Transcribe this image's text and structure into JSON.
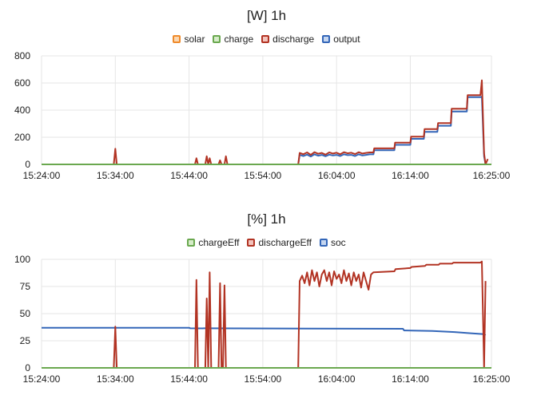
{
  "chart_data": [
    {
      "type": "line",
      "title": "[W] 1h",
      "xlabel": "",
      "ylabel": "",
      "ylim": [
        0,
        800
      ],
      "yticks": [
        "0",
        "200",
        "400",
        "600",
        "800"
      ],
      "xlim": [
        "15:24:00",
        "16:25:00"
      ],
      "xticks": [
        "15:24:00",
        "15:34:00",
        "15:44:00",
        "15:54:00",
        "16:04:00",
        "16:14:00",
        "16:25:00"
      ],
      "legend_position": "top",
      "grid": true,
      "series": [
        {
          "name": "solar",
          "color": "#ef8a2a",
          "points": [
            [
              "15:24:00",
              0
            ],
            [
              "16:25:00",
              0
            ]
          ]
        },
        {
          "name": "charge",
          "color": "#6aa84f",
          "points": [
            [
              "15:24:00",
              0
            ],
            [
              "16:25:00",
              0
            ]
          ]
        },
        {
          "name": "discharge",
          "color": "#b23323",
          "points": [
            [
              "15:24:00",
              0
            ],
            [
              "15:33:48",
              0
            ],
            [
              "15:34:00",
              115
            ],
            [
              "15:34:12",
              0
            ],
            [
              "15:44:48",
              0
            ],
            [
              "15:45:00",
              45
            ],
            [
              "15:45:12",
              0
            ],
            [
              "15:46:12",
              0
            ],
            [
              "15:46:24",
              60
            ],
            [
              "15:46:36",
              0
            ],
            [
              "15:46:48",
              45
            ],
            [
              "15:47:00",
              0
            ],
            [
              "15:48:00",
              0
            ],
            [
              "15:48:12",
              30
            ],
            [
              "15:48:24",
              0
            ],
            [
              "15:48:48",
              0
            ],
            [
              "15:49:00",
              60
            ],
            [
              "15:49:12",
              0
            ],
            [
              "15:58:48",
              0
            ],
            [
              "15:59:00",
              85
            ],
            [
              "15:59:30",
              75
            ],
            [
              "16:00:00",
              88
            ],
            [
              "16:00:30",
              70
            ],
            [
              "16:01:00",
              90
            ],
            [
              "16:01:30",
              78
            ],
            [
              "16:02:00",
              85
            ],
            [
              "16:02:30",
              72
            ],
            [
              "16:03:00",
              88
            ],
            [
              "16:03:30",
              80
            ],
            [
              "16:04:00",
              86
            ],
            [
              "16:04:30",
              75
            ],
            [
              "16:05:00",
              90
            ],
            [
              "16:05:30",
              82
            ],
            [
              "16:06:00",
              86
            ],
            [
              "16:06:30",
              76
            ],
            [
              "16:07:00",
              90
            ],
            [
              "16:07:30",
              80
            ],
            [
              "16:08:00",
              85
            ],
            [
              "16:08:30",
              88
            ],
            [
              "16:09:00",
              88
            ],
            [
              "16:09:06",
              118
            ],
            [
              "16:11:50",
              118
            ],
            [
              "16:11:56",
              160
            ],
            [
              "16:14:00",
              160
            ],
            [
              "16:14:06",
              205
            ],
            [
              "16:15:50",
              205
            ],
            [
              "16:15:56",
              260
            ],
            [
              "16:17:40",
              260
            ],
            [
              "16:17:46",
              305
            ],
            [
              "16:19:30",
              305
            ],
            [
              "16:19:36",
              410
            ],
            [
              "16:21:40",
              410
            ],
            [
              "16:21:46",
              510
            ],
            [
              "16:23:30",
              510
            ],
            [
              "16:23:42",
              620
            ],
            [
              "16:24:00",
              80
            ],
            [
              "16:24:12",
              0
            ],
            [
              "16:24:30",
              40
            ]
          ]
        },
        {
          "name": "output",
          "color": "#3366b8",
          "points": [
            [
              "15:24:00",
              0
            ],
            [
              "15:58:48",
              0
            ],
            [
              "15:59:00",
              70
            ],
            [
              "15:59:30",
              62
            ],
            [
              "16:00:00",
              72
            ],
            [
              "16:00:30",
              58
            ],
            [
              "16:01:00",
              74
            ],
            [
              "16:01:30",
              64
            ],
            [
              "16:02:00",
              70
            ],
            [
              "16:02:30",
              60
            ],
            [
              "16:03:00",
              72
            ],
            [
              "16:03:30",
              66
            ],
            [
              "16:04:00",
              70
            ],
            [
              "16:04:30",
              62
            ],
            [
              "16:05:00",
              74
            ],
            [
              "16:05:30",
              68
            ],
            [
              "16:06:00",
              70
            ],
            [
              "16:06:30",
              62
            ],
            [
              "16:07:00",
              74
            ],
            [
              "16:07:30",
              66
            ],
            [
              "16:08:00",
              70
            ],
            [
              "16:08:30",
              74
            ],
            [
              "16:09:00",
              74
            ],
            [
              "16:09:06",
              104
            ],
            [
              "16:11:50",
              104
            ],
            [
              "16:11:56",
              144
            ],
            [
              "16:14:00",
              144
            ],
            [
              "16:14:06",
              188
            ],
            [
              "16:15:50",
              188
            ],
            [
              "16:15:56",
              240
            ],
            [
              "16:17:40",
              240
            ],
            [
              "16:17:46",
              285
            ],
            [
              "16:19:30",
              285
            ],
            [
              "16:19:36",
              390
            ],
            [
              "16:21:40",
              390
            ],
            [
              "16:21:46",
              495
            ],
            [
              "16:23:30",
              495
            ],
            [
              "16:23:42",
              500
            ],
            [
              "16:24:00",
              60
            ],
            [
              "16:24:12",
              0
            ]
          ]
        }
      ]
    },
    {
      "type": "line",
      "title": "[%] 1h",
      "xlabel": "",
      "ylabel": "",
      "ylim": [
        0,
        100
      ],
      "yticks": [
        "0",
        "25",
        "50",
        "75",
        "100"
      ],
      "xlim": [
        "15:24:00",
        "16:25:00"
      ],
      "xticks": [
        "15:24:00",
        "15:34:00",
        "15:44:00",
        "15:54:00",
        "16:04:00",
        "16:14:00",
        "16:25:00"
      ],
      "legend_position": "top",
      "grid": true,
      "series": [
        {
          "name": "chargeEff",
          "color": "#6aa84f",
          "points": [
            [
              "15:24:00",
              0
            ],
            [
              "16:25:00",
              0
            ]
          ]
        },
        {
          "name": "dischargeEff",
          "color": "#b23323",
          "points": [
            [
              "15:24:00",
              0
            ],
            [
              "15:33:48",
              0
            ],
            [
              "15:34:00",
              38
            ],
            [
              "15:34:12",
              0
            ],
            [
              "15:44:48",
              0
            ],
            [
              "15:45:00",
              81
            ],
            [
              "15:45:12",
              0
            ],
            [
              "15:46:12",
              0
            ],
            [
              "15:46:24",
              64
            ],
            [
              "15:46:36",
              0
            ],
            [
              "15:46:48",
              88
            ],
            [
              "15:47:00",
              0
            ],
            [
              "15:48:00",
              0
            ],
            [
              "15:48:12",
              78
            ],
            [
              "15:48:24",
              0
            ],
            [
              "15:48:36",
              0
            ],
            [
              "15:48:48",
              76
            ],
            [
              "15:49:00",
              0
            ],
            [
              "15:58:48",
              0
            ],
            [
              "15:59:00",
              80
            ],
            [
              "15:59:20",
              85
            ],
            [
              "15:59:40",
              78
            ],
            [
              "16:00:00",
              88
            ],
            [
              "16:00:20",
              76
            ],
            [
              "16:00:40",
              90
            ],
            [
              "16:01:00",
              80
            ],
            [
              "16:01:20",
              88
            ],
            [
              "16:01:40",
              75
            ],
            [
              "16:02:00",
              86
            ],
            [
              "16:02:20",
              90
            ],
            [
              "16:02:40",
              80
            ],
            [
              "16:03:00",
              88
            ],
            [
              "16:03:20",
              76
            ],
            [
              "16:03:40",
              89
            ],
            [
              "16:04:00",
              82
            ],
            [
              "16:04:20",
              86
            ],
            [
              "16:04:40",
              78
            ],
            [
              "16:05:00",
              90
            ],
            [
              "16:05:20",
              80
            ],
            [
              "16:05:40",
              87
            ],
            [
              "16:06:00",
              76
            ],
            [
              "16:06:20",
              88
            ],
            [
              "16:06:40",
              80
            ],
            [
              "16:07:00",
              86
            ],
            [
              "16:07:20",
              74
            ],
            [
              "16:07:40",
              88
            ],
            [
              "16:08:00",
              80
            ],
            [
              "16:08:20",
              72
            ],
            [
              "16:08:40",
              86
            ],
            [
              "16:09:00",
              88
            ],
            [
              "16:11:50",
              89
            ],
            [
              "16:12:00",
              91
            ],
            [
              "16:14:00",
              92
            ],
            [
              "16:14:10",
              93
            ],
            [
              "16:16:00",
              94
            ],
            [
              "16:16:10",
              95
            ],
            [
              "16:17:50",
              95
            ],
            [
              "16:18:00",
              96
            ],
            [
              "16:19:40",
              96
            ],
            [
              "16:19:50",
              97
            ],
            [
              "16:23:30",
              97
            ],
            [
              "16:23:42",
              98
            ],
            [
              "16:24:00",
              0
            ],
            [
              "16:24:12",
              80
            ]
          ]
        },
        {
          "name": "soc",
          "color": "#3366b8",
          "points": [
            [
              "15:24:00",
              37
            ],
            [
              "15:44:00",
              37
            ],
            [
              "15:44:10",
              36.5
            ],
            [
              "16:13:00",
              36
            ],
            [
              "16:13:10",
              34.5
            ],
            [
              "16:17:00",
              34
            ],
            [
              "16:20:00",
              33
            ],
            [
              "16:22:00",
              32
            ],
            [
              "16:24:00",
              31
            ],
            [
              "16:24:12",
              30
            ]
          ]
        }
      ]
    }
  ]
}
